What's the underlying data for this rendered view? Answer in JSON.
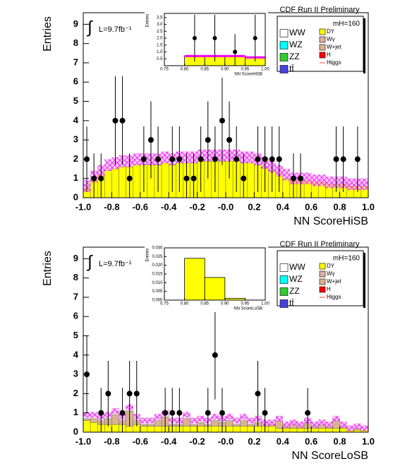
{
  "chart_data": [
    {
      "type": "histogram",
      "title": "CDF Run II Preliminary",
      "x_label": "NN ScoreHiSB",
      "y_label": "Entries",
      "integral": "∫",
      "luminosity": "L=9.7fb⁻¹",
      "mass": "mH=160",
      "xlim": [
        -1,
        1
      ],
      "ylim": [
        0,
        9.6
      ],
      "xticks": [
        {
          "value": -1,
          "label": "-1.0"
        },
        -0.8,
        -0.6,
        -0.4,
        -0.2,
        {
          "value": 0,
          "label": "-0.0"
        },
        0.2,
        0.4,
        0.6,
        0.8,
        {
          "value": 1,
          "label": "1.0"
        }
      ],
      "yticks": [
        0,
        1,
        2,
        3,
        4,
        5,
        6,
        7,
        8,
        9
      ],
      "bins": [
        -1,
        -0.95,
        -0.9,
        -0.85,
        -0.8,
        -0.75,
        -0.7,
        -0.65,
        -0.6,
        -0.55,
        -0.5,
        -0.45,
        -0.4,
        -0.35,
        -0.3,
        -0.25,
        -0.2,
        -0.15,
        -0.1,
        -0.05,
        0,
        0.05,
        0.1,
        0.15,
        0.2,
        0.25,
        0.3,
        0.35,
        0.4,
        0.45,
        0.5,
        0.55,
        0.6,
        0.65,
        0.7,
        0.75,
        0.8,
        0.85,
        0.9,
        0.95,
        1
      ],
      "series": [
        {
          "name": "DY",
          "color": "#ffff00",
          "values": [
            0.5,
            0.9,
            1.2,
            1.4,
            1.5,
            1.6,
            1.6,
            1.7,
            1.7,
            1.7,
            1.7,
            1.8,
            1.7,
            1.8,
            1.8,
            1.8,
            1.9,
            1.9,
            1.9,
            1.9,
            1.9,
            1.9,
            1.8,
            1.8,
            1.7,
            1.6,
            1.4,
            1.2,
            1.0,
            0.9,
            0.9,
            0.9,
            0.8,
            0.8,
            0.7,
            0.7,
            0.7,
            0.6,
            0.6,
            0.6
          ]
        },
        {
          "name": "WW",
          "color": "#ffffff",
          "values": [
            0.1,
            0.2,
            0.2,
            0.3,
            0.3,
            0.3,
            0.3,
            0.3,
            0.3,
            0.3,
            0.3,
            0.3,
            0.3,
            0.3,
            0.3,
            0.3,
            0.3,
            0.3,
            0.3,
            0.3,
            0.3,
            0.3,
            0.3,
            0.3,
            0.3,
            0.2,
            0.2,
            0.2,
            0.2,
            0.1,
            0.1,
            0.1,
            0.1,
            0.1,
            0.1,
            0.1,
            0.1,
            0.1,
            0.1,
            0.1
          ]
        }
      ],
      "uncertainty": 0.3,
      "points": {
        "values": [
          2,
          1,
          1,
          null,
          4,
          4,
          1,
          null,
          2,
          3,
          2,
          null,
          2,
          2,
          1,
          1,
          2,
          3,
          2,
          4,
          3,
          2,
          1,
          null,
          2,
          2,
          2,
          2,
          null,
          1,
          1,
          null,
          null,
          null,
          null,
          2,
          2,
          null,
          2,
          null
        ],
        "errors": [
          1.7,
          1.3,
          1.3,
          null,
          2.3,
          2.3,
          1.3,
          null,
          1.7,
          2.0,
          1.7,
          null,
          1.7,
          1.7,
          1.3,
          1.3,
          1.7,
          2.0,
          1.7,
          2.3,
          2.0,
          1.7,
          1.3,
          null,
          1.7,
          1.7,
          1.7,
          1.7,
          null,
          1.3,
          1.3,
          null,
          null,
          null,
          null,
          1.7,
          1.7,
          null,
          1.7,
          null
        ]
      },
      "legend": [
        {
          "name": "WW",
          "color": "#ffffff"
        },
        {
          "name": "WZ",
          "color": "#00ffff"
        },
        {
          "name": "ZZ",
          "color": "#33cc33"
        },
        {
          "name": "tt̄",
          "color": "#4444dd"
        },
        {
          "name": "DY",
          "color": "#ffff00"
        },
        {
          "name": "Wγ",
          "color": "#d8b0a8"
        },
        {
          "name": "W+jet",
          "color": "#d9b48f"
        },
        {
          "name": "H",
          "color": "#ff0000"
        },
        {
          "name": "Higgs",
          "color": "#ff4444"
        }
      ],
      "inset": {
        "x_label": "NN ScoreHiSB",
        "y_label": "Entries",
        "xlim": [
          0.75,
          1
        ],
        "ylim": [
          0,
          3.8
        ],
        "xticks": [
          0.75,
          {
            "value": 0.8,
            "label": "0.80"
          },
          0.85,
          {
            "value": 0.9,
            "label": "0.90"
          },
          0.95,
          {
            "value": 1,
            "label": "1.00"
          }
        ],
        "yticks": [
          0.5,
          {
            "value": 1,
            "label": "1.0"
          },
          1.5,
          {
            "value": 2,
            "label": "2.0"
          },
          2.5,
          {
            "value": 3,
            "label": "3.0"
          },
          3.5
        ],
        "bins": [
          0.75,
          0.8,
          0.85,
          0.9,
          0.95,
          1
        ],
        "values": [
          0,
          0.7,
          0.7,
          0.7,
          0.6
        ],
        "uncertainty": 0.08,
        "points": {
          "values": [
            null,
            2,
            2,
            1,
            2
          ],
          "errors": [
            null,
            1.7,
            1.7,
            1.3,
            1.7
          ]
        }
      }
    },
    {
      "type": "histogram",
      "title": "CDF Run II Preliminary",
      "x_label": "NN ScoreLoSB",
      "y_label": "Entries",
      "integral": "∫",
      "luminosity": "L=9.7fb⁻¹",
      "mass": "mH=160",
      "xlim": [
        -1,
        1
      ],
      "ylim": [
        0,
        9.6
      ],
      "xticks": [
        {
          "value": -1,
          "label": "-1.0"
        },
        -0.8,
        -0.6,
        -0.4,
        -0.2,
        {
          "value": 0,
          "label": "-0.0"
        },
        0.2,
        0.4,
        0.6,
        0.8,
        {
          "value": 1,
          "label": "1.0"
        }
      ],
      "yticks": [
        0,
        1,
        2,
        3,
        4,
        5,
        6,
        7,
        8,
        9
      ],
      "bins": [
        -1,
        -0.95,
        -0.9,
        -0.85,
        -0.8,
        -0.75,
        -0.7,
        -0.65,
        -0.6,
        -0.55,
        -0.5,
        -0.45,
        -0.4,
        -0.35,
        -0.3,
        -0.25,
        -0.2,
        -0.15,
        -0.1,
        -0.05,
        0,
        0.05,
        0.1,
        0.15,
        0.2,
        0.25,
        0.3,
        0.35,
        0.4,
        0.45,
        0.5,
        0.55,
        0.6,
        0.65,
        0.7,
        0.75,
        0.8,
        0.85,
        0.9,
        0.95,
        1
      ],
      "series": [
        {
          "name": "DY",
          "color": "#ffff00",
          "values": [
            0.6,
            0.5,
            0.4,
            0.4,
            0.4,
            0.4,
            0.3,
            0.4,
            0.3,
            0.3,
            0.3,
            0.3,
            0.3,
            0.3,
            0.3,
            0.3,
            0.3,
            0.3,
            0.3,
            0.3,
            0.3,
            0.3,
            0.3,
            0.3,
            0.3,
            0.3,
            0.3,
            0.2,
            0.2,
            0.2,
            0.2,
            0.2,
            0.2,
            0.2,
            0.2,
            0.2,
            0.2,
            0.1,
            0.1,
            0.1
          ]
        },
        {
          "name": "W+jet",
          "color": "#d9b48f",
          "values": [
            0.1,
            0.2,
            0.2,
            0.3,
            0.5,
            0.2,
            0.8,
            0.2,
            0.1,
            0.1,
            0.3,
            0.5,
            0.1,
            0.1,
            0.4,
            0.1,
            0.2,
            0.1,
            0.3,
            0.2,
            0.3,
            0.1,
            0.3,
            0.1,
            0.2,
            0.1,
            0.1,
            0.4,
            0.1,
            0.2,
            0.1,
            0.3,
            0.1,
            0.2,
            0.1,
            0.4,
            0.1,
            0,
            0.1,
            0
          ]
        },
        {
          "name": "WW",
          "color": "#ffffff",
          "values": [
            0.2,
            0.2,
            0.2,
            0.2,
            0.2,
            0.2,
            0.2,
            0.2,
            0.2,
            0.2,
            0.2,
            0.2,
            0.2,
            0.2,
            0.2,
            0.2,
            0.2,
            0.2,
            0.2,
            0.2,
            0.2,
            0.2,
            0.2,
            0.2,
            0.2,
            0.1,
            0.1,
            0.1,
            0.1,
            0.1,
            0.1,
            0.1,
            0.1,
            0.1,
            0.1,
            0.1,
            0.1,
            0.1,
            0.1,
            0.1
          ]
        }
      ],
      "uncertainty": 0.15,
      "points": {
        "values": [
          3,
          null,
          1,
          2,
          null,
          1,
          2,
          2,
          null,
          null,
          null,
          1,
          1,
          1,
          null,
          null,
          null,
          1,
          4,
          1,
          null,
          null,
          null,
          null,
          2,
          1,
          null,
          null,
          null,
          null,
          null,
          1,
          null,
          null,
          null,
          null,
          null,
          null,
          null,
          null
        ],
        "errors": [
          2.0,
          null,
          1.3,
          1.7,
          null,
          1.3,
          1.7,
          1.7,
          null,
          null,
          null,
          1.3,
          1.3,
          1.3,
          null,
          null,
          null,
          1.3,
          2.3,
          1.3,
          null,
          null,
          null,
          null,
          1.7,
          1.3,
          null,
          null,
          null,
          null,
          null,
          1.3,
          null,
          null,
          null,
          null,
          null,
          null,
          null,
          null
        ]
      },
      "legend": [
        {
          "name": "WW",
          "color": "#ffffff"
        },
        {
          "name": "WZ",
          "color": "#00ffff"
        },
        {
          "name": "ZZ",
          "color": "#33cc33"
        },
        {
          "name": "tt̄",
          "color": "#4444dd"
        },
        {
          "name": "DY",
          "color": "#ffff00"
        },
        {
          "name": "Wγ",
          "color": "#d8b0a8"
        },
        {
          "name": "W+jet",
          "color": "#d9b48f"
        },
        {
          "name": "H",
          "color": "#ff0000"
        },
        {
          "name": "Higgs",
          "color": "#ff4444"
        }
      ],
      "inset": {
        "x_label": "NN ScoreLoSB",
        "y_label": "Entries",
        "xlim": [
          0.75,
          1
        ],
        "ylim": [
          0,
          0.03
        ],
        "xticks": [
          0.75,
          {
            "value": 0.8,
            "label": "0.80"
          },
          0.85,
          {
            "value": 0.9,
            "label": "0.90"
          },
          0.95,
          {
            "value": 1,
            "label": "1.00"
          }
        ],
        "yticks": [
          {
            "value": 0,
            "label": "0.000"
          },
          0.005,
          {
            "value": 0.01,
            "label": "0.010"
          },
          0.015,
          {
            "value": 0.02,
            "label": "0.020"
          },
          0.025,
          {
            "value": 0.03,
            "label": "0.030"
          }
        ],
        "bins": [
          0.75,
          0.8,
          0.85,
          0.9,
          0.95,
          1
        ],
        "values": [
          0,
          0.024,
          0.013,
          0.001,
          0
        ]
      }
    }
  ]
}
